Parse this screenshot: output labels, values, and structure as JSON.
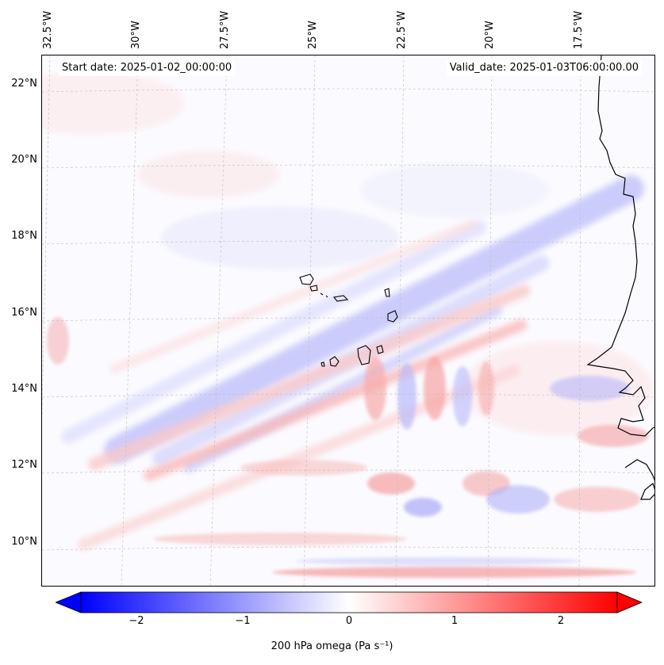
{
  "map": {
    "start_date": "Start date: 2025-01-02_00:00:00",
    "valid_date": "Valid_date: 2025-01-03T06:00:00.00",
    "lat_labels": [
      "22°N",
      "20°N",
      "18°N",
      "16°N",
      "14°N",
      "12°N",
      "10°N"
    ],
    "lon_labels": [
      "32.5°W",
      "30°W",
      "27.5°W",
      "25°W",
      "22.5°W",
      "20°W",
      "17.5°W"
    ],
    "coastline_color": "#000000",
    "grid_color": "#bbbbbb"
  },
  "colorbar": {
    "label": "200 hPa omega (Pa s⁻¹)",
    "ticks": [
      "−2",
      "−1",
      "0",
      "1",
      "2"
    ],
    "tick_values": [
      -2,
      -1,
      0,
      1,
      2
    ],
    "range": [
      -2.5,
      2.5
    ],
    "low_color": "#0000ff",
    "mid_color": "#ffffff",
    "high_color": "#ff0000"
  }
}
